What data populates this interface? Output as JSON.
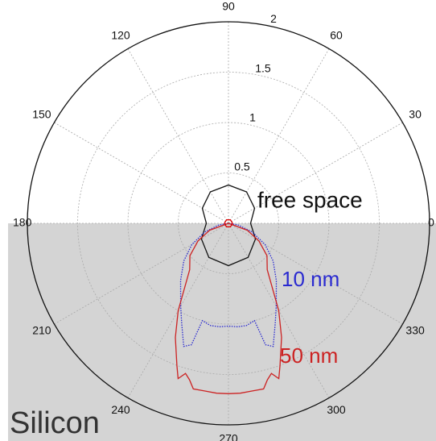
{
  "chart_data": {
    "type": "polar",
    "rlim": [
      0,
      2
    ],
    "rticks": [
      0.5,
      1,
      1.5,
      2
    ],
    "thetaticks": [
      0,
      30,
      60,
      90,
      120,
      150,
      180,
      210,
      240,
      270,
      300,
      330
    ],
    "grid": true,
    "region_label": "Silicon",
    "series": [
      {
        "name": "free space",
        "color": "#111111",
        "theta": [
          0,
          30,
          60,
          90,
          120,
          150,
          180,
          210,
          240,
          270,
          300,
          330
        ],
        "r": [
          0.22,
          0.3,
          0.36,
          0.38,
          0.36,
          0.3,
          0.22,
          0.31,
          0.39,
          0.42,
          0.39,
          0.31
        ]
      },
      {
        "name": "10 nm",
        "color": "#2a2ad0",
        "dash": true,
        "theta": [
          180,
          190,
          200,
          210,
          220,
          230,
          240,
          245,
          250,
          253,
          255,
          260,
          265,
          270,
          275,
          280,
          285,
          287,
          290,
          295,
          300,
          310,
          320,
          330,
          340,
          350,
          360
        ],
        "r": [
          0,
          0.1,
          0.25,
          0.42,
          0.58,
          0.74,
          0.95,
          1.1,
          1.3,
          1.26,
          1.0,
          1.03,
          1.03,
          1.02,
          1.03,
          1.03,
          1.0,
          1.26,
          1.3,
          1.1,
          0.95,
          0.74,
          0.58,
          0.42,
          0.25,
          0.1,
          0
        ]
      },
      {
        "name": "50 nm",
        "color": "#cc2222",
        "theta": [
          180,
          200,
          210,
          220,
          230,
          240,
          245,
          250,
          252,
          254,
          256,
          258,
          262,
          266,
          270,
          274,
          278,
          282,
          284,
          286,
          288,
          290,
          295,
          300,
          310,
          320,
          330,
          340,
          360
        ],
        "r": [
          0,
          0.2,
          0.35,
          0.5,
          0.6,
          1.0,
          1.25,
          1.5,
          1.62,
          1.55,
          1.6,
          1.68,
          1.68,
          1.69,
          1.69,
          1.69,
          1.68,
          1.68,
          1.6,
          1.55,
          1.62,
          1.5,
          1.25,
          1.0,
          0.6,
          0.5,
          0.35,
          0.2,
          0
        ]
      },
      {
        "color": "#dd0000",
        "theta": [
          0,
          60,
          120,
          180,
          240,
          300
        ],
        "r": [
          0.04,
          0.04,
          0.04,
          0.04,
          0.04,
          0.04
        ]
      }
    ]
  }
}
